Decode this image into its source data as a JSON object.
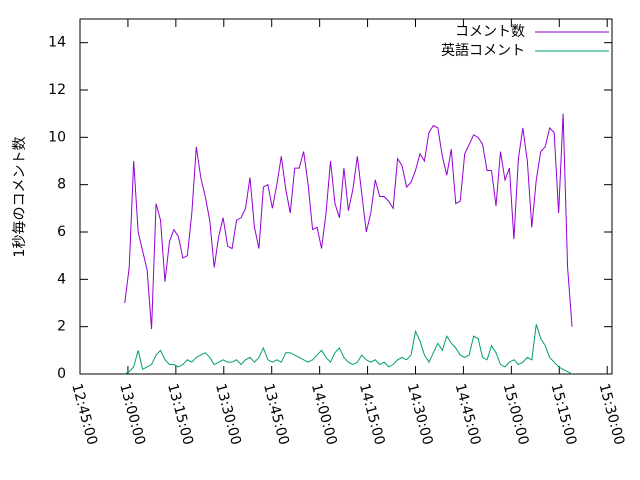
{
  "chart_data": {
    "type": "line",
    "y_label": "1秒毎のコメント数",
    "legend": "top-right",
    "x": [
      "12:59:00",
      "13:00:24",
      "13:01:48",
      "13:03:12",
      "13:04:36",
      "13:06:00",
      "13:07:24",
      "13:08:48",
      "13:10:12",
      "13:11:36",
      "13:13:00",
      "13:14:24",
      "13:15:48",
      "13:17:12",
      "13:18:36",
      "13:20:00",
      "13:21:24",
      "13:22:48",
      "13:24:12",
      "13:25:36",
      "13:27:00",
      "13:28:24",
      "13:29:48",
      "13:31:12",
      "13:32:36",
      "13:34:00",
      "13:35:24",
      "13:36:48",
      "13:38:12",
      "13:39:36",
      "13:41:00",
      "13:42:24",
      "13:43:48",
      "13:45:12",
      "13:46:36",
      "13:48:00",
      "13:49:24",
      "13:50:48",
      "13:52:12",
      "13:53:36",
      "13:55:00",
      "13:56:24",
      "13:57:48",
      "13:59:12",
      "14:00:36",
      "14:02:00",
      "14:03:24",
      "14:04:48",
      "14:06:12",
      "14:07:36",
      "14:09:00",
      "14:10:24",
      "14:11:48",
      "14:13:12",
      "14:14:36",
      "14:16:00",
      "14:17:24",
      "14:18:48",
      "14:20:12",
      "14:21:36",
      "14:23:00",
      "14:24:24",
      "14:25:48",
      "14:27:12",
      "14:28:36",
      "14:30:00",
      "14:31:24",
      "14:32:48",
      "14:34:12",
      "14:35:36",
      "14:37:00",
      "14:38:24",
      "14:39:48",
      "14:41:12",
      "14:42:36",
      "14:44:00",
      "14:45:24",
      "14:46:48",
      "14:48:12",
      "14:49:36",
      "14:51:00",
      "14:52:24",
      "14:53:48",
      "14:55:12",
      "14:56:36",
      "14:58:00",
      "14:59:24",
      "15:00:48",
      "15:02:12",
      "15:03:36",
      "15:05:00",
      "15:06:24",
      "15:07:48",
      "15:09:12",
      "15:10:36",
      "15:12:00",
      "15:13:24",
      "15:14:48",
      "15:16:12",
      "15:17:36",
      "15:19:00"
    ],
    "series": [
      {
        "name": "コメント数",
        "color": "#9400d3",
        "values": [
          3.0,
          4.5,
          9.0,
          6.0,
          5.2,
          4.4,
          1.9,
          7.2,
          6.5,
          3.9,
          5.6,
          6.1,
          5.8,
          4.9,
          5.0,
          6.8,
          9.6,
          8.3,
          7.5,
          6.5,
          4.5,
          5.8,
          6.6,
          5.4,
          5.3,
          6.5,
          6.6,
          7.0,
          8.3,
          6.2,
          5.3,
          7.9,
          8.0,
          7.0,
          8.0,
          9.2,
          7.8,
          6.8,
          8.7,
          8.7,
          9.4,
          8.0,
          6.1,
          6.2,
          5.3,
          6.8,
          9.0,
          7.2,
          6.6,
          8.7,
          6.9,
          7.8,
          9.2,
          7.6,
          6.0,
          6.8,
          8.2,
          7.5,
          7.5,
          7.3,
          7.0,
          9.1,
          8.8,
          7.9,
          8.1,
          8.6,
          9.3,
          9.0,
          10.2,
          10.5,
          10.4,
          9.2,
          8.4,
          9.5,
          7.2,
          7.3,
          9.3,
          9.7,
          10.1,
          10.0,
          9.7,
          8.6,
          8.6,
          7.1,
          9.4,
          8.2,
          8.7,
          5.7,
          9.1,
          10.4,
          9.0,
          6.2,
          8.2,
          9.4,
          9.6,
          10.4,
          10.2,
          6.8,
          11.0,
          4.5,
          2.0
        ]
      },
      {
        "name": "英語コメント",
        "color": "#009e73",
        "values": [
          0,
          0.1,
          0.3,
          1.0,
          0.2,
          0.3,
          0.4,
          0.8,
          1.0,
          0.6,
          0.4,
          0.4,
          0.3,
          0.4,
          0.6,
          0.5,
          0.7,
          0.8,
          0.9,
          0.7,
          0.4,
          0.5,
          0.6,
          0.5,
          0.5,
          0.6,
          0.4,
          0.6,
          0.7,
          0.5,
          0.7,
          1.1,
          0.6,
          0.5,
          0.6,
          0.5,
          0.9,
          0.9,
          0.8,
          0.7,
          0.6,
          0.5,
          0.6,
          0.8,
          1.0,
          0.7,
          0.5,
          0.9,
          1.1,
          0.7,
          0.5,
          0.4,
          0.5,
          0.8,
          0.6,
          0.5,
          0.6,
          0.4,
          0.5,
          0.3,
          0.4,
          0.6,
          0.7,
          0.6,
          0.8,
          1.8,
          1.4,
          0.8,
          0.5,
          0.9,
          1.3,
          1.0,
          1.6,
          1.3,
          1.1,
          0.8,
          0.7,
          0.8,
          1.6,
          1.5,
          0.7,
          0.6,
          1.2,
          0.9,
          0.4,
          0.3,
          0.5,
          0.6,
          0.4,
          0.5,
          0.7,
          0.6,
          2.1,
          1.5,
          1.2,
          0.7,
          0.5,
          0.3,
          0.2,
          0.1,
          0
        ]
      }
    ],
    "xlim": [
      "12:45:00",
      "15:31:30"
    ],
    "xticks": [
      "12:45:00",
      "13:00:00",
      "13:15:00",
      "13:30:00",
      "13:45:00",
      "14:00:00",
      "14:15:00",
      "14:30:00",
      "14:45:00",
      "15:00:00",
      "15:15:00",
      "15:30:00"
    ],
    "ylim": [
      0,
      15
    ],
    "yticks": [
      0,
      2,
      4,
      6,
      8,
      10,
      12,
      14
    ]
  }
}
